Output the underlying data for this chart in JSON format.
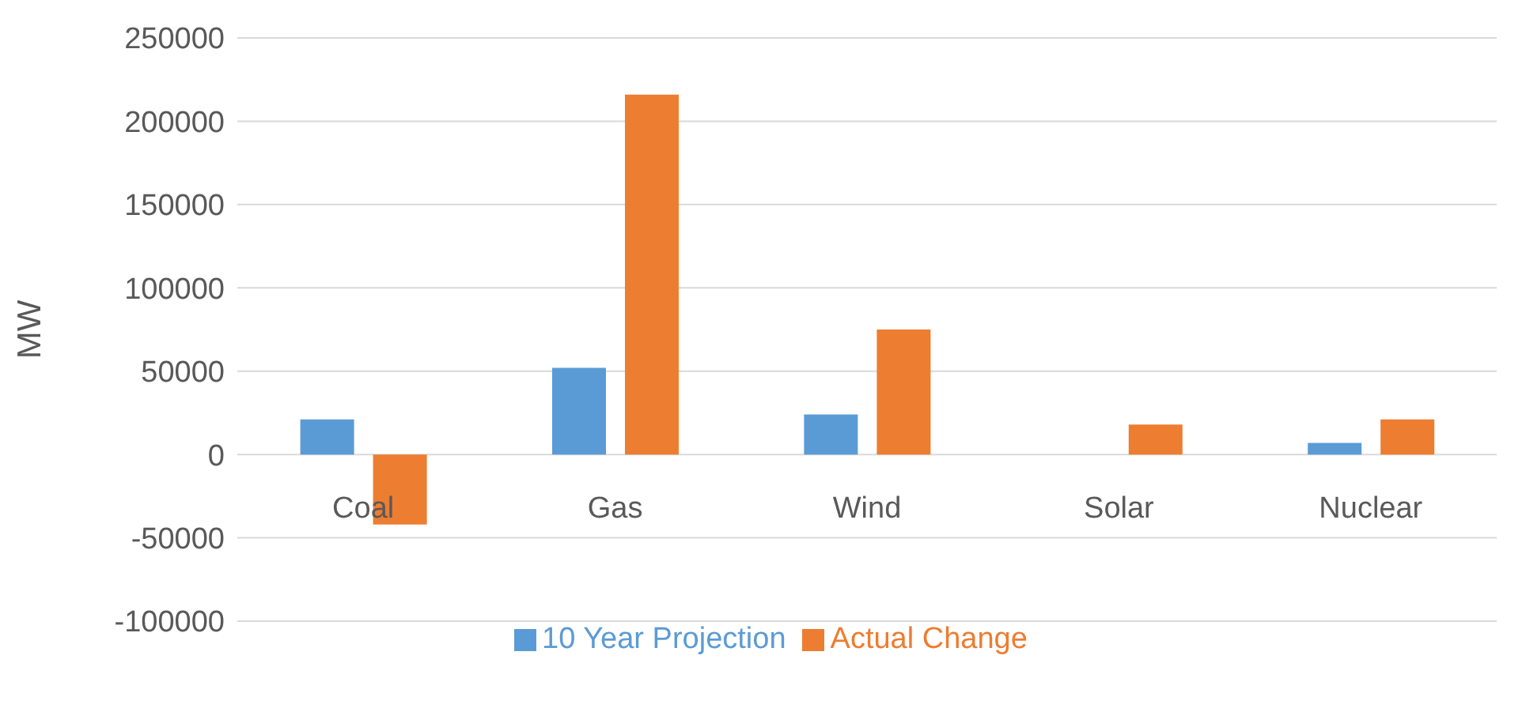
{
  "chart_data": {
    "type": "bar",
    "ylabel": "MW",
    "categories": [
      "Coal",
      "Gas",
      "Wind",
      "Solar",
      "Nuclear"
    ],
    "series": [
      {
        "name": "10 Year Projection",
        "color": "#5b9bd5",
        "values": [
          21000,
          52000,
          24000,
          0,
          7000
        ]
      },
      {
        "name": "Actual Change",
        "color": "#ed7d31",
        "values": [
          -42000,
          216000,
          75000,
          18000,
          21000
        ]
      }
    ],
    "ylim": [
      -100000,
      250000
    ],
    "yticks": [
      -100000,
      -50000,
      0,
      50000,
      100000,
      150000,
      200000,
      250000
    ],
    "grid": "y",
    "legend": "bottom"
  }
}
